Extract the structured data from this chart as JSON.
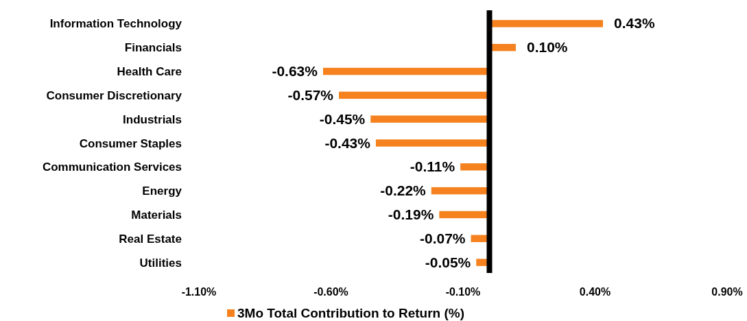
{
  "chart_data": {
    "type": "bar",
    "orientation": "horizontal",
    "categories": [
      "Information Technology",
      "Financials",
      "Health Care",
      "Consumer Discretionary",
      "Industrials",
      "Consumer Staples",
      "Communication Services",
      "Energy",
      "Materials",
      "Real Estate",
      "Utilities"
    ],
    "series": [
      {
        "name": "3Mo Total Contribution to Return (%)",
        "color": "#f5821f",
        "values": [
          0.43,
          0.1,
          -0.63,
          -0.57,
          -0.45,
          -0.43,
          -0.11,
          -0.22,
          -0.19,
          -0.07,
          -0.05
        ],
        "value_labels": [
          "0.43%",
          "0.10%",
          "-0.63%",
          "-0.57%",
          "-0.45%",
          "-0.43%",
          "-0.11%",
          "-0.22%",
          "-0.19%",
          "-0.07%",
          "-0.05%"
        ]
      }
    ],
    "xlim": [
      -1.1,
      0.9
    ],
    "xticks": [
      {
        "value": -1.1,
        "label": "-1.10%"
      },
      {
        "value": -0.6,
        "label": "-0.60%"
      },
      {
        "value": -0.1,
        "label": "-0.10%"
      },
      {
        "value": 0.4,
        "label": "0.40%"
      },
      {
        "value": 0.9,
        "label": "0.90%"
      }
    ],
    "grid": false,
    "legend": "bottom"
  }
}
